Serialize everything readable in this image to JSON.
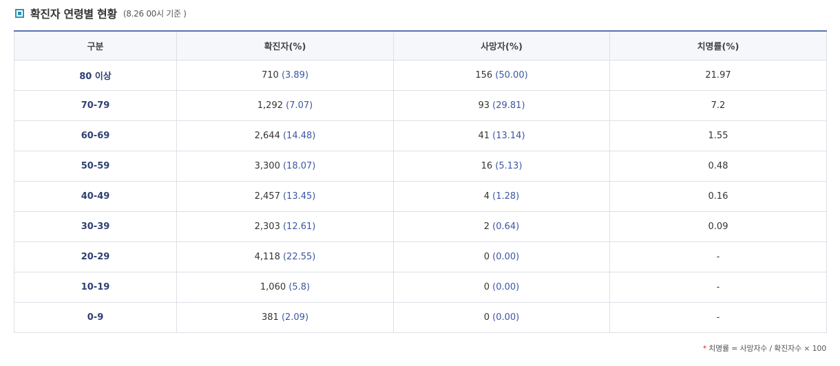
{
  "header": {
    "title": "확진자 연령별 현황",
    "subtitle": "(8.26 00시 기준 )"
  },
  "table": {
    "columns": [
      "구분",
      "확진자(%)",
      "사망자(%)",
      "치명률(%)"
    ],
    "rows": [
      {
        "age": "80 이상",
        "confirmed": "710",
        "confirmed_pct": "(3.89)",
        "deaths": "156",
        "deaths_pct": "(50.00)",
        "fatality": "21.97"
      },
      {
        "age": "70-79",
        "confirmed": "1,292",
        "confirmed_pct": "(7.07)",
        "deaths": "93",
        "deaths_pct": "(29.81)",
        "fatality": "7.2"
      },
      {
        "age": "60-69",
        "confirmed": "2,644",
        "confirmed_pct": "(14.48)",
        "deaths": "41",
        "deaths_pct": "(13.14)",
        "fatality": "1.55"
      },
      {
        "age": "50-59",
        "confirmed": "3,300",
        "confirmed_pct": "(18.07)",
        "deaths": "16",
        "deaths_pct": "(5.13)",
        "fatality": "0.48"
      },
      {
        "age": "40-49",
        "confirmed": "2,457",
        "confirmed_pct": "(13.45)",
        "deaths": "4",
        "deaths_pct": "(1.28)",
        "fatality": "0.16"
      },
      {
        "age": "30-39",
        "confirmed": "2,303",
        "confirmed_pct": "(12.61)",
        "deaths": "2",
        "deaths_pct": "(0.64)",
        "fatality": "0.09"
      },
      {
        "age": "20-29",
        "confirmed": "4,118",
        "confirmed_pct": "(22.55)",
        "deaths": "0",
        "deaths_pct": "(0.00)",
        "fatality": "-"
      },
      {
        "age": "10-19",
        "confirmed": "1,060",
        "confirmed_pct": "(5.8)",
        "deaths": "0",
        "deaths_pct": "(0.00)",
        "fatality": "-"
      },
      {
        "age": "0-9",
        "confirmed": "381",
        "confirmed_pct": "(2.09)",
        "deaths": "0",
        "deaths_pct": "(0.00)",
        "fatality": "-"
      }
    ]
  },
  "footnote": {
    "marker": "*",
    "text": "치명률 = 사망자수 / 확진자수 × 100"
  },
  "colors": {
    "accent": "#2a93b8",
    "table_top_border": "#5b72b0",
    "value_blue": "#3b55a3",
    "age_label": "#2e3f73",
    "footnote_star": "#d62b2b"
  }
}
